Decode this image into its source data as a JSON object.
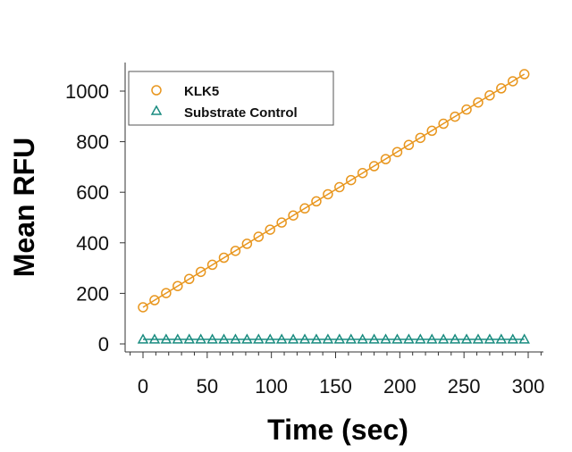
{
  "chart_data": {
    "type": "scatter",
    "title": "",
    "xlabel": "Time (sec)",
    "ylabel": "Mean RFU",
    "xlim": [
      0,
      300
    ],
    "ylim": [
      0,
      1000
    ],
    "xticks": [
      0,
      50,
      100,
      150,
      200,
      250,
      300
    ],
    "yticks": [
      0,
      200,
      400,
      600,
      800,
      1000
    ],
    "grid": false,
    "legend_placement": "top-left",
    "series": [
      {
        "name": "KLK5",
        "marker": "circle",
        "color": "#E8961E",
        "fit_line": true,
        "x": [
          0,
          9,
          18,
          27,
          36,
          45,
          54,
          63,
          72,
          81,
          90,
          99,
          108,
          117,
          126,
          135,
          144,
          153,
          162,
          171,
          180,
          189,
          198,
          207,
          216,
          225,
          234,
          243,
          252,
          261,
          270,
          279,
          288,
          297
        ],
        "y": [
          145,
          173,
          201,
          229,
          257,
          285,
          313,
          341,
          368,
          396,
          424,
          452,
          480,
          508,
          536,
          564,
          592,
          620,
          648,
          676,
          703,
          731,
          759,
          787,
          815,
          843,
          871,
          899,
          927,
          955,
          983,
          1011,
          1039,
          1067
        ]
      },
      {
        "name": "Substrate Control",
        "marker": "triangle",
        "color": "#1A8C80",
        "fit_line": true,
        "x": [
          0,
          9,
          18,
          27,
          36,
          45,
          54,
          63,
          72,
          81,
          90,
          99,
          108,
          117,
          126,
          135,
          144,
          153,
          162,
          171,
          180,
          189,
          198,
          207,
          216,
          225,
          234,
          243,
          252,
          261,
          270,
          279,
          288,
          297
        ],
        "y": [
          18,
          18,
          18,
          18,
          18,
          18,
          18,
          18,
          18,
          18,
          18,
          18,
          18,
          18,
          18,
          18,
          18,
          18,
          18,
          18,
          18,
          18,
          18,
          18,
          18,
          18,
          18,
          18,
          18,
          18,
          18,
          18,
          18,
          18
        ]
      }
    ]
  }
}
